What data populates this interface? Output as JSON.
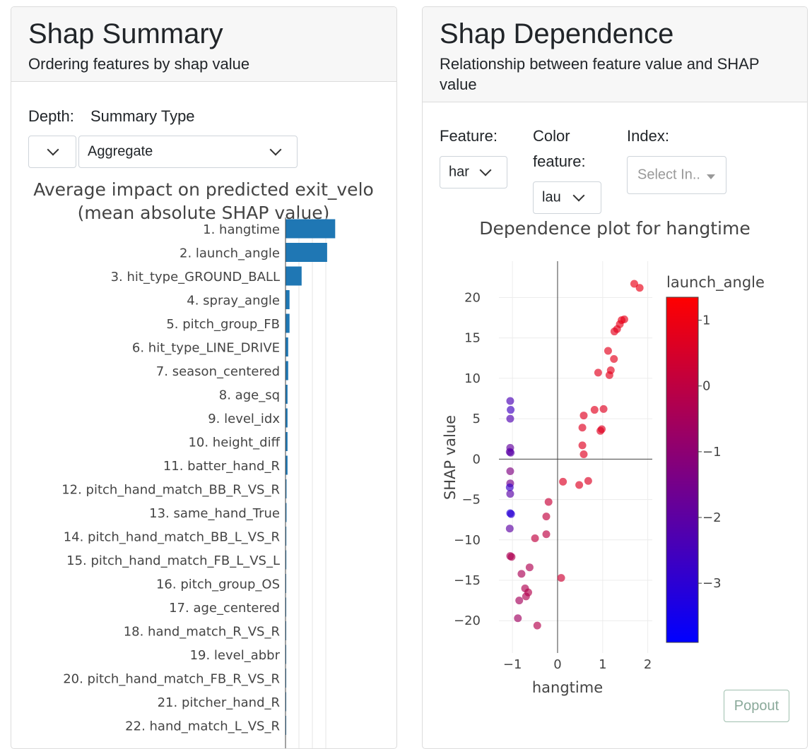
{
  "summary": {
    "title": "Shap Summary",
    "subtitle": "Ordering features by shap value",
    "depth_label": "Depth:",
    "summary_type_label": "Summary Type",
    "depth_value": "",
    "summary_type_value": "Aggregate",
    "chart_title_line1": "Average impact on predicted exit_velo",
    "chart_title_line2": "(mean absolute SHAP value)"
  },
  "dependence": {
    "title": "Shap Dependence",
    "subtitle": "Relationship between feature value and SHAP value",
    "feature_label": "Feature:",
    "color_label_line1": "Color",
    "color_label_line2": "feature:",
    "index_label": "Index:",
    "feature_value": "har",
    "color_value": "lau",
    "index_placeholder": "Select In..",
    "popout_label": "Popout"
  },
  "colors": {
    "bar": "#1f77b4",
    "colorscale_low": "#0000ff",
    "colorscale_high": "#ff0000"
  },
  "chart_data": [
    {
      "type": "bar",
      "orientation": "horizontal",
      "title": "Average impact on predicted exit_velo (mean absolute SHAP value)",
      "categories": [
        "1. hangtime",
        "2. launch_angle",
        "3. hit_type_GROUND_BALL",
        "4. spray_angle",
        "5. pitch_group_FB",
        "6. hit_type_LINE_DRIVE",
        "7. season_centered",
        "8. age_sq",
        "9. level_idx",
        "10. height_diff",
        "11. batter_hand_R",
        "12. pitch_hand_match_BB_R_VS_R",
        "13. same_hand_True",
        "14. pitch_hand_match_BB_L_VS_R",
        "15. pitch_hand_match_FB_L_VS_L",
        "16. pitch_group_OS",
        "17. age_centered",
        "18. hand_match_R_VS_R",
        "19. level_abbr",
        "20. pitch_hand_match_FB_R_VS_R",
        "21. pitcher_hand_R",
        "22. hand_match_L_VS_R"
      ],
      "values": [
        7.4,
        6.2,
        2.4,
        0.6,
        0.6,
        0.4,
        0.4,
        0.3,
        0.3,
        0.3,
        0.3,
        0.15,
        0.15,
        0.12,
        0.12,
        0.1,
        0.1,
        0.1,
        0.1,
        0.08,
        0.08,
        0.08
      ],
      "grid": true
    },
    {
      "type": "scatter",
      "title": "Dependence plot for hangtime",
      "xlabel": "hangtime",
      "ylabel": "SHAP value",
      "xlim": [
        -1.3,
        2.1
      ],
      "ylim": [
        -24,
        24.5
      ],
      "xticks": [
        "−1",
        "0",
        "1",
        "2"
      ],
      "yticks": [
        "20",
        "15",
        "10",
        "5",
        "0",
        "−5",
        "−10",
        "−15",
        "−20"
      ],
      "colorbar_title": "launch_angle",
      "colorbar_range": [
        -3.9,
        1.35
      ],
      "colorbar_ticks": [
        "1",
        "0",
        "−1",
        "−2",
        "−3"
      ],
      "x": [
        1.7,
        1.82,
        1.48,
        1.42,
        1.38,
        1.32,
        1.26,
        1.12,
        1.25,
        1.18,
        1.15,
        0.9,
        0.58,
        0.82,
        1.02,
        0.55,
        0.98,
        0.95,
        0.55,
        0.58,
        0.12,
        0.48,
        0.68,
        -1.05,
        -1.04,
        -1.05,
        -1.05,
        -1.06,
        -1.04,
        -1.05,
        -1.05,
        -1.06,
        -1.05,
        -1.05,
        -1.03,
        -1.06,
        -1.05,
        -1.02,
        -0.2,
        -0.25,
        -0.25,
        -0.5,
        0.08,
        -0.62,
        -0.8,
        -0.72,
        -0.65,
        -0.7,
        -0.85,
        -0.88,
        -0.45
      ],
      "y": [
        21.7,
        21.2,
        17.3,
        17.2,
        16.7,
        16.1,
        15.8,
        13.4,
        12.4,
        11.0,
        10.4,
        10.7,
        5.4,
        6.1,
        6.2,
        3.9,
        3.7,
        3.5,
        1.7,
        0.6,
        -2.8,
        -3.2,
        -2.7,
        7.2,
        6.1,
        5.0,
        1.4,
        0.9,
        0.8,
        -1.5,
        -3.0,
        -3.5,
        -4.3,
        -6.7,
        -6.8,
        -8.6,
        -12.0,
        -12.1,
        -5.3,
        -7.1,
        -9.3,
        -9.8,
        -14.7,
        -13.4,
        -14.2,
        -16.0,
        -16.5,
        -17.0,
        -17.5,
        -19.7,
        -20.6
      ],
      "color": [
        0.9,
        0.9,
        0.85,
        0.85,
        0.85,
        0.8,
        0.8,
        0.8,
        0.8,
        0.8,
        0.8,
        0.75,
        0.7,
        0.75,
        0.7,
        0.7,
        0.7,
        0.7,
        0.7,
        0.7,
        0.6,
        0.65,
        0.6,
        -2.4,
        -2.6,
        -2.3,
        -1.9,
        -2.0,
        -2.1,
        -1.3,
        -1.5,
        -2.8,
        -2.1,
        -3.2,
        -3.0,
        -2.0,
        -0.4,
        -0.3,
        0.2,
        0.1,
        0.0,
        0.05,
        0.3,
        -0.3,
        -0.4,
        -0.3,
        -0.2,
        -0.3,
        -0.5,
        -0.6,
        -0.2
      ]
    }
  ]
}
